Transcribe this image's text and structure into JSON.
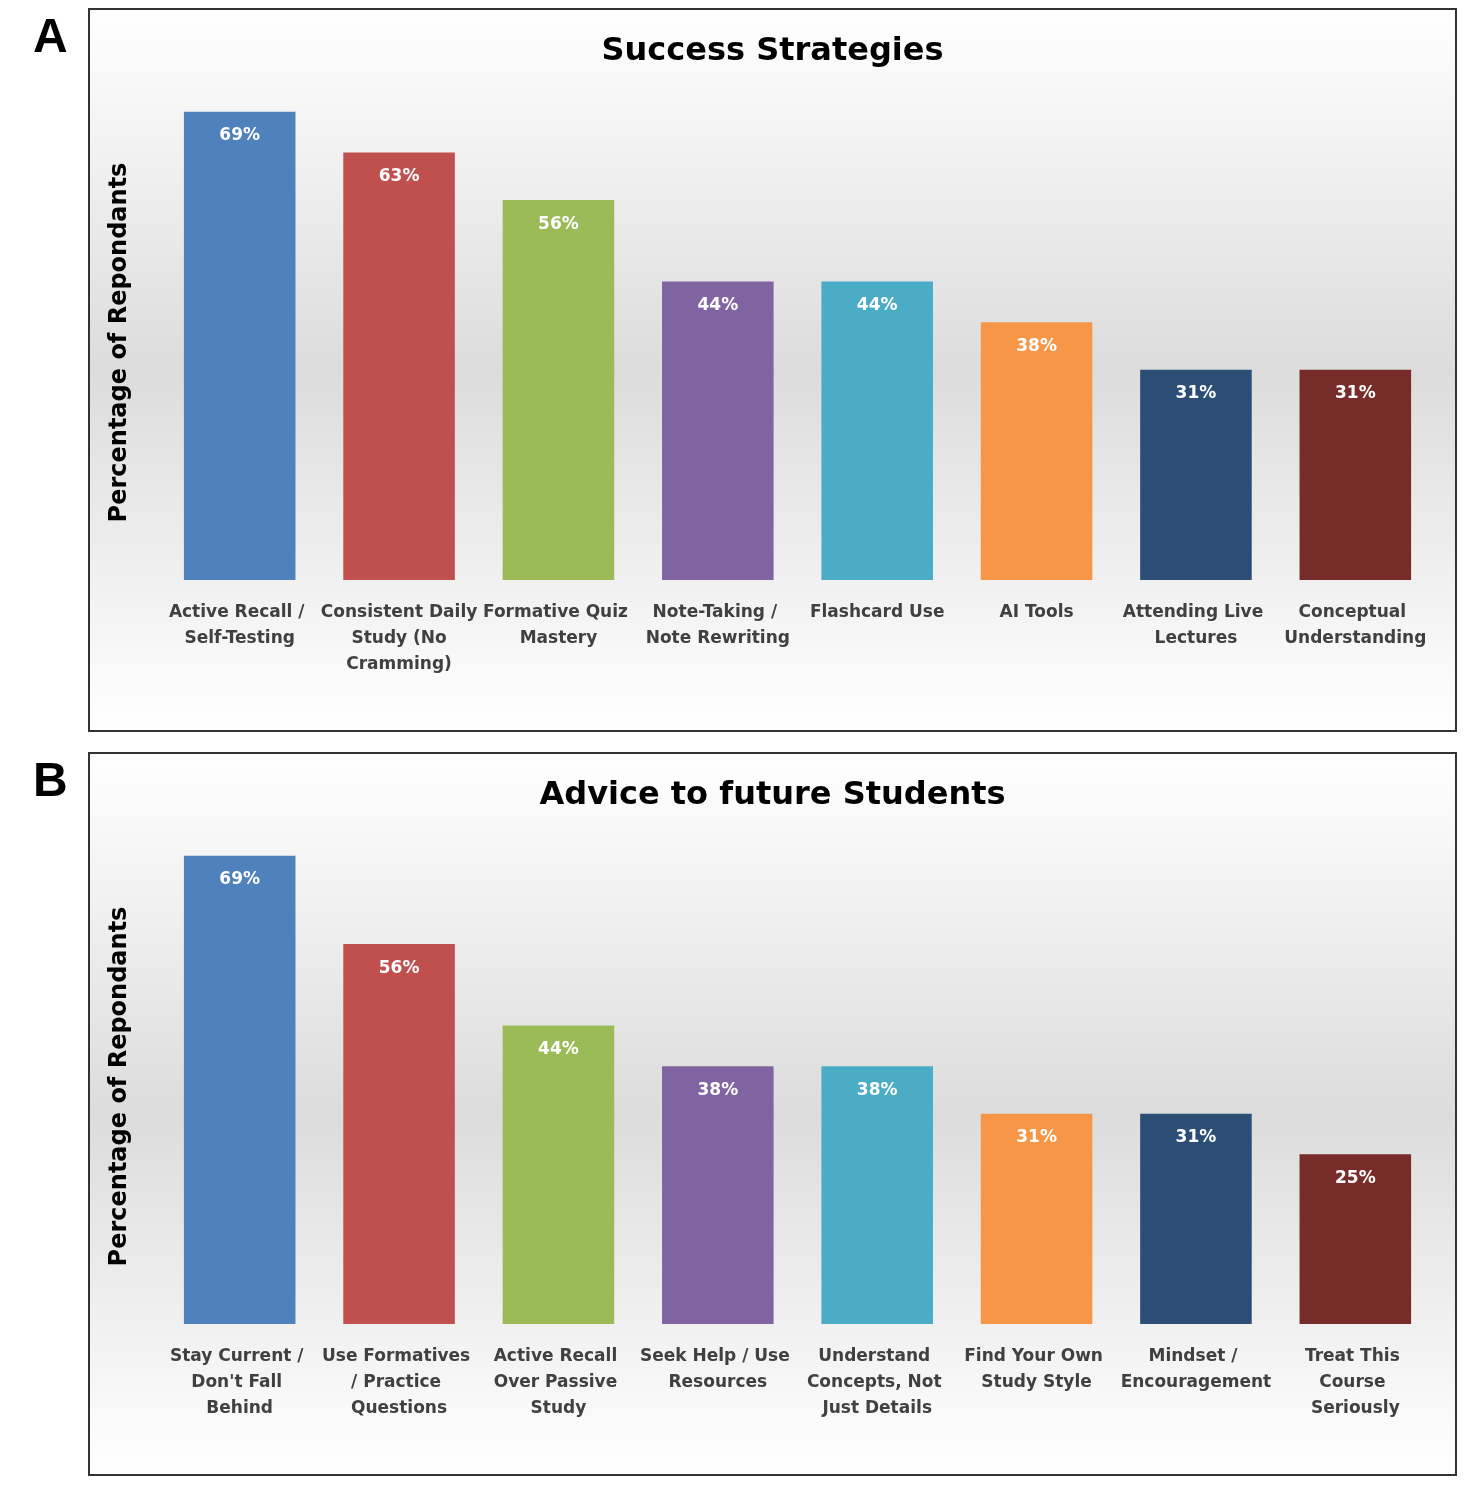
{
  "chart_data": [
    {
      "type": "bar",
      "title": "Success Strategies",
      "ylabel": "Percentage of Repondants",
      "annotations": [
        "A"
      ],
      "categories": [
        "Active Recall / Self-Testing",
        "Consistent Daily Study (No Cramming)",
        "Formative Quiz Mastery",
        "Note-Taking / Note Rewriting",
        "Flashcard Use",
        "AI Tools",
        "Attending Live Lectures",
        "Conceptual Understanding"
      ],
      "values": [
        69,
        63,
        56,
        44,
        44,
        38,
        31,
        31
      ],
      "value_labels": [
        "69%",
        "63%",
        "56%",
        "44%",
        "44%",
        "38%",
        "31%",
        "31%"
      ],
      "colors": [
        "#4f81bd",
        "#c0504d",
        "#9bbb59",
        "#8064a2",
        "#4bacc6",
        "#f79646",
        "#2c4d75",
        "#772c2a"
      ],
      "grid": false
    },
    {
      "type": "bar",
      "title": "Advice to future Students",
      "ylabel": "Percentage of Repondants",
      "annotations": [
        "B"
      ],
      "categories": [
        "Stay Current / Don't Fall Behind",
        "Use Formatives / Practice Questions",
        "Active Recall Over Passive Study",
        "Seek Help / Use Resources",
        "Understand Concepts, Not Just Details",
        "Find Your Own Study Style",
        "Mindset / Encouragement",
        "Treat This Course Seriously"
      ],
      "values": [
        69,
        56,
        44,
        38,
        38,
        31,
        31,
        25
      ],
      "value_labels": [
        "69%",
        "56%",
        "44%",
        "38%",
        "38%",
        "31%",
        "31%",
        "25%"
      ],
      "colors": [
        "#4f81bd",
        "#c0504d",
        "#9bbb59",
        "#8064a2",
        "#4bacc6",
        "#f79646",
        "#2c4d75",
        "#772c2a"
      ],
      "grid": false
    }
  ]
}
